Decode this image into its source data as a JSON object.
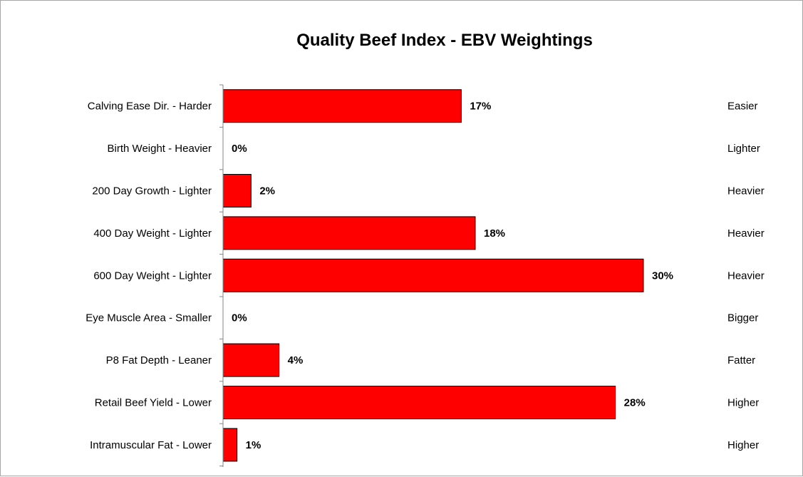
{
  "chart_data": {
    "type": "bar",
    "orientation": "horizontal",
    "title": "Quality Beef Index - EBV Weightings",
    "categories": [
      "Calving Ease Dir. - Harder",
      "Birth Weight - Heavier",
      "200 Day Growth - Lighter",
      "400 Day Weight - Lighter",
      "600 Day Weight - Lighter",
      "Eye Muscle Area - Smaller",
      "P8 Fat Depth - Leaner",
      "Retail Beef Yield - Lower",
      "Intramuscular Fat - Lower"
    ],
    "right_labels": [
      "Easier",
      "Lighter",
      "Heavier",
      "Heavier",
      "Heavier",
      "Bigger",
      "Fatter",
      "Higher",
      "Higher"
    ],
    "values": [
      17,
      0,
      2,
      18,
      30,
      0,
      4,
      28,
      1
    ],
    "data_labels": [
      "17%",
      "0%",
      "2%",
      "18%",
      "30%",
      "0%",
      "4%",
      "28%",
      "1%"
    ],
    "xlim": [
      0,
      30
    ],
    "grid": false,
    "legend": "none",
    "colors": {
      "bar_fill": "#ff0000",
      "bar_stroke": "#000000",
      "axis": "#868686",
      "frame": "#a6a6a6"
    }
  }
}
